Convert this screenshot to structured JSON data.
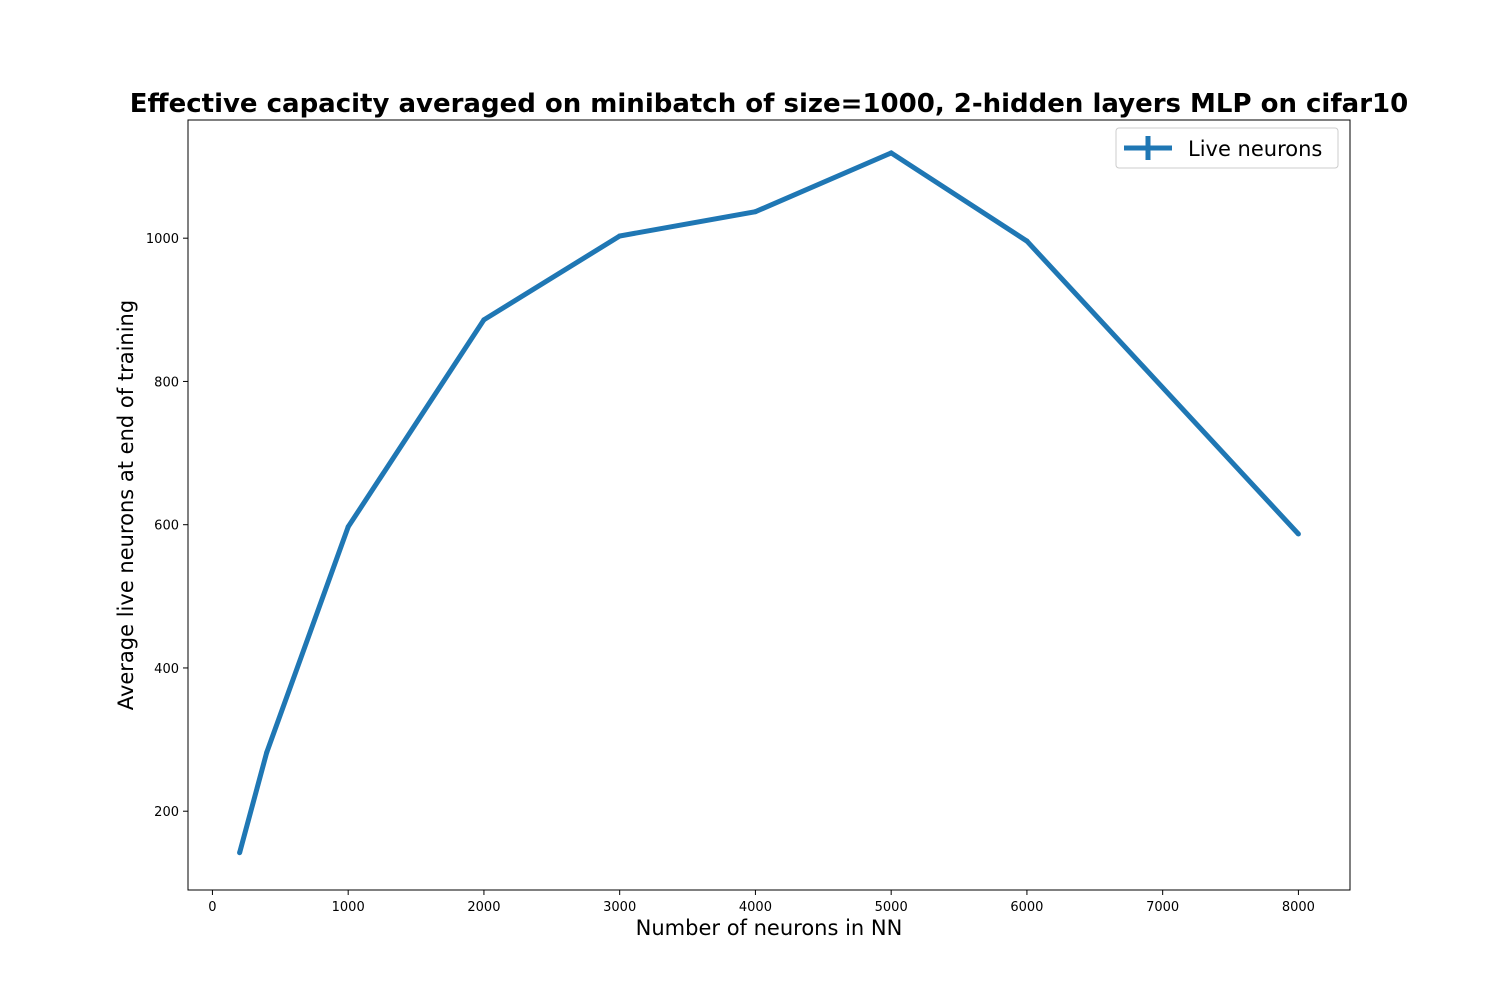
{
  "chart_data": {
    "type": "line",
    "title": "Effective capacity averaged on minibatch of size=1000, 2-hidden layers MLP on cifar10",
    "xlabel": "Number of neurons in NN",
    "ylabel": "Average live neurons at end of training",
    "xlim": [
      -180,
      8380
    ],
    "ylim": [
      90,
      1165
    ],
    "x_ticks": [
      0,
      1000,
      2000,
      3000,
      4000,
      5000,
      6000,
      7000,
      8000
    ],
    "y_ticks": [
      200,
      400,
      600,
      800,
      1000
    ],
    "grid": false,
    "legend_position": "upper right",
    "series": [
      {
        "name": "Live neurons",
        "color": "#1f77b4",
        "marker": "errorbar-plus",
        "x": [
          200,
          400,
          1000,
          2000,
          3000,
          4000,
          5000,
          6000,
          8000
        ],
        "y": [
          142,
          282,
          597,
          886,
          1003,
          1037,
          1119,
          996,
          587
        ]
      }
    ]
  }
}
